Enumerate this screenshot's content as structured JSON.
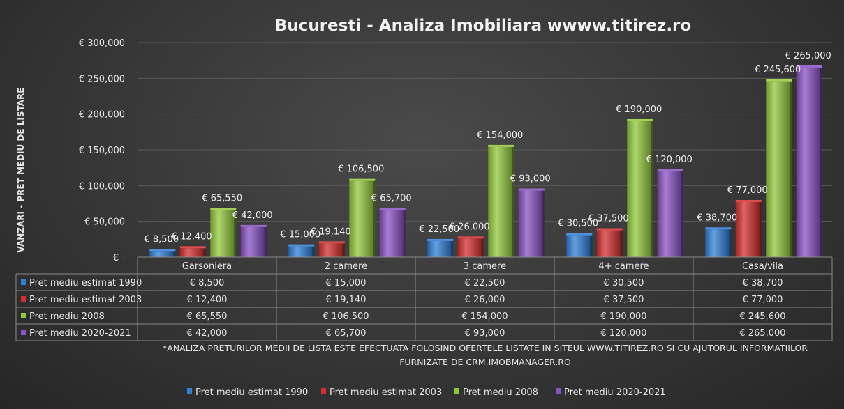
{
  "chart_data": {
    "type": "bar",
    "title": "Bucuresti - Analiza Imobiliara wwww.titirez.ro",
    "ylabel": "VANZARI  - PRET MEDIU DE LISTARE",
    "categories": [
      "Garsoniera",
      "2 camere",
      "3 camere",
      "4+ camere",
      "Casa/vila"
    ],
    "ylim": [
      0,
      300000
    ],
    "yticks": [
      0,
      50000,
      100000,
      150000,
      200000,
      250000,
      300000
    ],
    "ytick_labels": [
      "€ -",
      "€ 50,000",
      "€ 100,000",
      "€ 150,000",
      "€ 200,000",
      "€ 250,000",
      "€ 300,000"
    ],
    "grid": true,
    "legend_position": "bottom",
    "series": [
      {
        "name": "Pret mediu estimat 1990",
        "color": "#2f7fd6",
        "values": [
          8500,
          15000,
          22500,
          30500,
          38700
        ],
        "labels": [
          "€ 8,500",
          "€ 15,000",
          "€ 22,500",
          "€ 30,500",
          "€ 38,700"
        ]
      },
      {
        "name": "Pret mediu estimat 2003",
        "color": "#d42f2f",
        "values": [
          12400,
          19140,
          26000,
          37500,
          77000
        ],
        "labels": [
          "€ 12,400",
          "€ 19,140",
          "€ 26,000",
          "€ 37,500",
          "€ 77,000"
        ]
      },
      {
        "name": "Pret mediu  2008",
        "color": "#92c83c",
        "values": [
          65550,
          106500,
          154000,
          190000,
          245600
        ],
        "labels": [
          "€ 65,550",
          "€ 106,500",
          "€ 154,000",
          "€ 190,000",
          "€ 245,600"
        ]
      },
      {
        "name": "Pret mediu 2020-2021",
        "color": "#8a52c4",
        "values": [
          42000,
          65700,
          93000,
          120000,
          265000
        ],
        "labels": [
          "€ 42,000",
          "€ 65,700",
          "€ 93,000",
          "€ 120,000",
          "€ 265,000"
        ]
      }
    ],
    "note_lines": [
      "*ANALIZA PRETURILOR MEDII DE LISTA ESTE EFECTUATA FOLOSIND OFERTELE LISTATE IN SITEUL WWW.TITIREZ.RO SI CU AJUTORUL INFORMATIILOR",
      "FURNIZATE DE CRM.IMOBMANAGER.RO"
    ]
  }
}
